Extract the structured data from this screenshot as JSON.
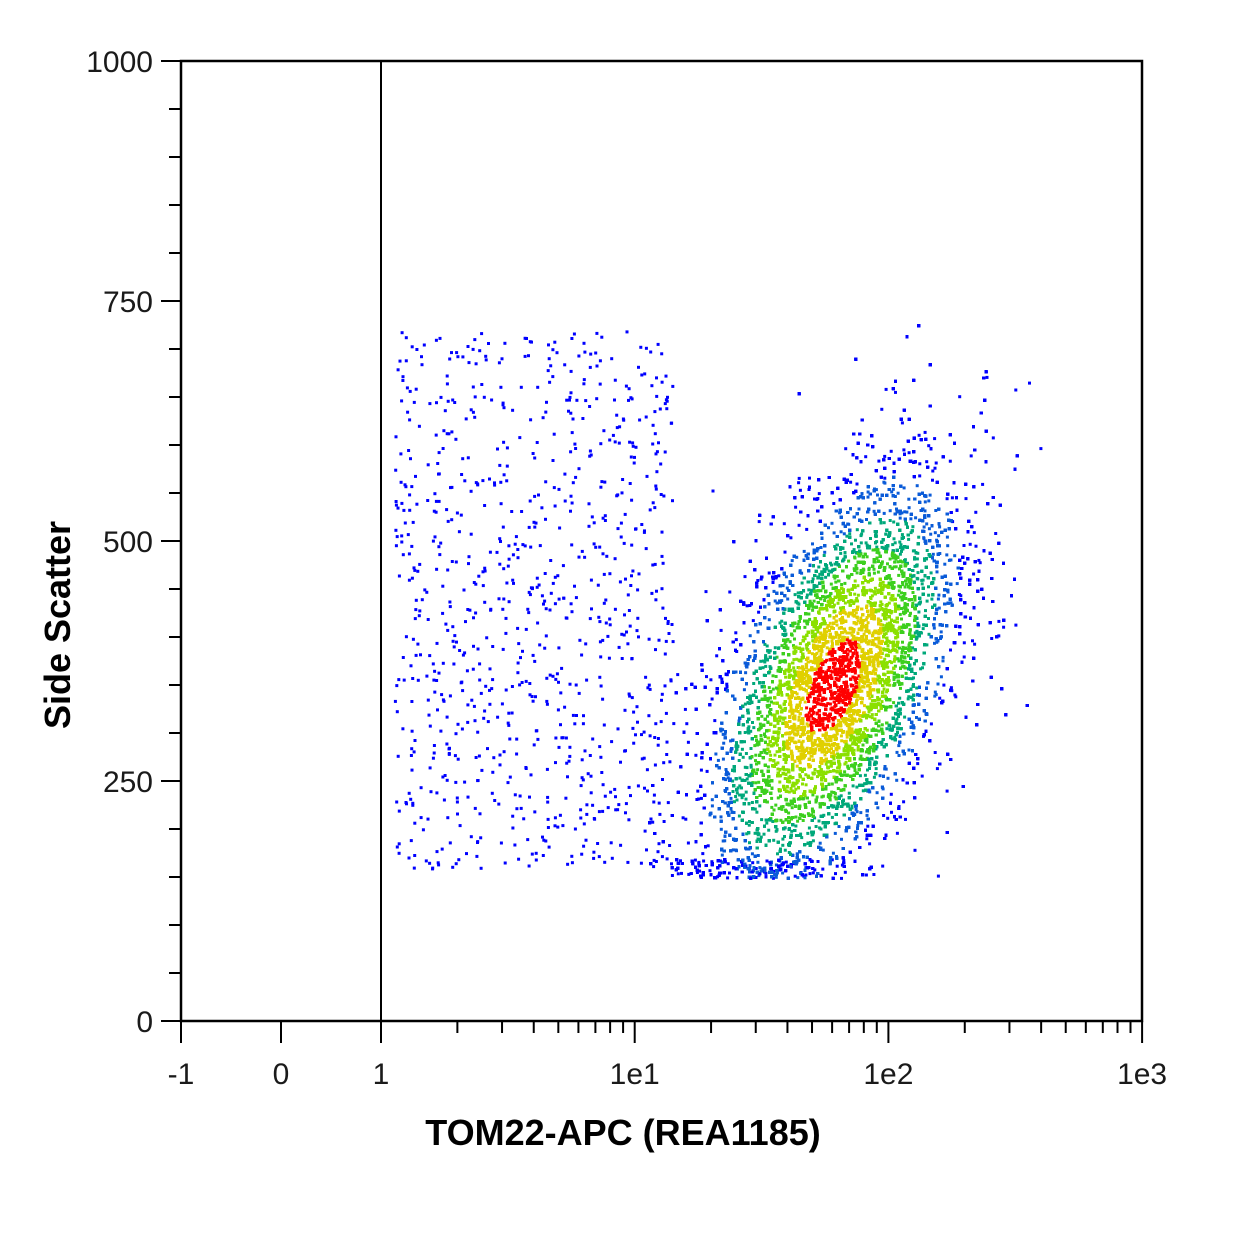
{
  "chart_data": {
    "type": "scatter",
    "style": "density-dot-plot",
    "xlabel": "TOM22-APC (REA1185)",
    "ylabel": "Side Scatter",
    "x_scale": "biexponential",
    "xlim": [
      -1,
      1000
    ],
    "ylim": [
      0,
      1000
    ],
    "x_ticks": [
      {
        "value": -1,
        "label": "-1"
      },
      {
        "value": 0,
        "label": "0"
      },
      {
        "value": 1,
        "label": "1"
      },
      {
        "value": 10,
        "label": "1e1"
      },
      {
        "value": 100,
        "label": "1e2"
      },
      {
        "value": 1000,
        "label": "1e3"
      }
    ],
    "y_ticks": [
      {
        "value": 0,
        "label": "0"
      },
      {
        "value": 250,
        "label": "250"
      },
      {
        "value": 500,
        "label": "500"
      },
      {
        "value": 750,
        "label": "750"
      },
      {
        "value": 1000,
        "label": "1000"
      }
    ],
    "gate_line_x": 1,
    "population": {
      "center_x": 60,
      "center_y": 350,
      "x_range": [
        1,
        400
      ],
      "y_range": [
        150,
        790
      ]
    },
    "grid": false,
    "density_colors": [
      "#0000ff",
      "#0a5bd8",
      "#00a87a",
      "#3ccf1e",
      "#8be000",
      "#e0d000",
      "#ff0000"
    ]
  }
}
